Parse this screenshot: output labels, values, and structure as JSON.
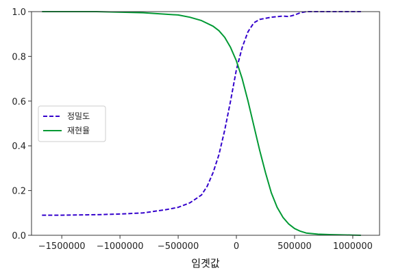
{
  "chart_data": {
    "type": "line",
    "title": "",
    "xlabel": "임곗값",
    "ylabel": "",
    "xlim": [
      -1760000,
      1230000
    ],
    "ylim": [
      0,
      1.0
    ],
    "xticks": [
      -1500000,
      -1000000,
      -500000,
      0,
      500000,
      1000000
    ],
    "xtick_labels": [
      "−1500000",
      "−1000000",
      "−500000",
      "0",
      "500000",
      "1000000"
    ],
    "yticks": [
      0.0,
      0.2,
      0.4,
      0.6,
      0.8,
      1.0
    ],
    "ytick_labels": [
      "0.0",
      "0.2",
      "0.4",
      "0.6",
      "0.8",
      "1.0"
    ],
    "grid": false,
    "legend": "center-left",
    "series": [
      {
        "name": "정밀도",
        "color": "#3300cc",
        "style": "dashed",
        "x": [
          -1670000,
          -1500000,
          -1200000,
          -1000000,
          -800000,
          -600000,
          -500000,
          -400000,
          -300000,
          -250000,
          -200000,
          -150000,
          -100000,
          -50000,
          0,
          50000,
          100000,
          150000,
          200000,
          300000,
          400000,
          450000,
          500000,
          550000,
          600000,
          800000,
          1000000,
          1070000
        ],
        "y": [
          0.09,
          0.09,
          0.092,
          0.095,
          0.1,
          0.115,
          0.125,
          0.145,
          0.18,
          0.22,
          0.28,
          0.36,
          0.47,
          0.6,
          0.74,
          0.84,
          0.91,
          0.95,
          0.965,
          0.975,
          0.98,
          0.978,
          0.985,
          0.995,
          1.0,
          1.0,
          1.0,
          1.0
        ]
      },
      {
        "name": "재현율",
        "color": "#009933",
        "style": "solid",
        "x": [
          -1670000,
          -1200000,
          -800000,
          -500000,
          -400000,
          -300000,
          -200000,
          -150000,
          -100000,
          -50000,
          0,
          50000,
          100000,
          150000,
          200000,
          250000,
          300000,
          350000,
          400000,
          450000,
          500000,
          550000,
          600000,
          700000,
          800000,
          1000000,
          1070000
        ],
        "y": [
          1.0,
          1.0,
          0.995,
          0.985,
          0.975,
          0.96,
          0.935,
          0.915,
          0.885,
          0.84,
          0.78,
          0.7,
          0.6,
          0.49,
          0.38,
          0.28,
          0.19,
          0.125,
          0.08,
          0.05,
          0.03,
          0.018,
          0.01,
          0.005,
          0.003,
          0.001,
          0.0
        ]
      }
    ]
  }
}
